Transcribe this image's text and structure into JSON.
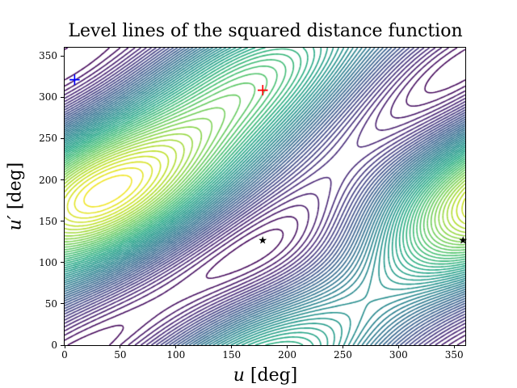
{
  "chart_data": {
    "type": "contour",
    "title": "Level lines of the squared distance function",
    "xlabel": "u [deg]",
    "ylabel": "u′ [deg]",
    "xlim": [
      0,
      360
    ],
    "ylim": [
      0,
      360
    ],
    "xticks": [
      0,
      50,
      100,
      150,
      200,
      250,
      300,
      350
    ],
    "yticks": [
      0,
      50,
      100,
      150,
      200,
      250,
      300,
      350
    ],
    "grid": false,
    "colormap": "viridis",
    "n_levels": 50,
    "markers": [
      {
        "name": "blue-plus",
        "symbol": "+",
        "color": "#0000ff",
        "u": 9,
        "u_prime": 322
      },
      {
        "name": "red-plus",
        "symbol": "+",
        "color": "#ff0000",
        "u": 178,
        "u_prime": 309
      },
      {
        "name": "star-1",
        "symbol": "★",
        "color": "#000000",
        "u": 178,
        "u_prime": 126
      },
      {
        "name": "star-2",
        "symbol": "★",
        "color": "#000000",
        "u": 358,
        "u_prime": 126
      }
    ],
    "features": {
      "global_maximum_near": [
        178,
        309
      ],
      "second_maximum_near": [
        215,
        0
      ],
      "saddle_points": [
        [
          178,
          126
        ],
        [
          358,
          126
        ]
      ],
      "minimum_region_near": [
        9,
        322
      ]
    }
  },
  "labels": {
    "title": "Level lines of the squared distance function",
    "xlabel_var": "u",
    "xlabel_unit": " [deg]",
    "ylabel_var": "u′",
    "ylabel_unit": " [deg]"
  }
}
